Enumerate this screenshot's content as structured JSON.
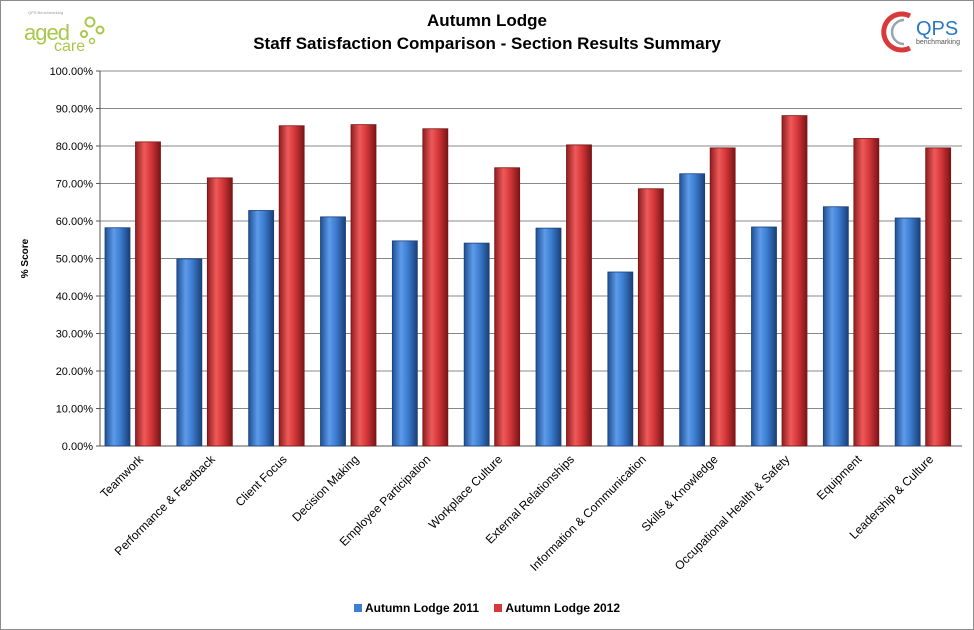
{
  "header": {
    "title_line1": "Autumn Lodge",
    "title_line2": "Staff Satisfaction Comparison - Section Results Summary"
  },
  "logos": {
    "left_small_text": "QPS Benchmarking",
    "left_word1": "aged",
    "left_word2": "care",
    "right_word": "QPS",
    "right_sub": "benchmarking"
  },
  "colors": {
    "series_2011": "#3d7fd3",
    "series_2012": "#d8393b",
    "grid": "#888888"
  },
  "chart_data": {
    "type": "bar",
    "title": "Autumn Lodge Staff Satisfaction Comparison - Section Results Summary",
    "xlabel": "",
    "ylabel": "% Score",
    "ylim": [
      0,
      100
    ],
    "yticks": [
      "0.00%",
      "10.00%",
      "20.00%",
      "30.00%",
      "40.00%",
      "50.00%",
      "60.00%",
      "70.00%",
      "80.00%",
      "90.00%",
      "100.00%"
    ],
    "grid": true,
    "legend_position": "bottom",
    "categories": [
      "Teamwork",
      "Performance & Feedback",
      "Client Focus",
      "Decision Making",
      "Employee Participation",
      "Workplace Culture",
      "External Relationships",
      "Information & Communication",
      "Skills & Knowledge",
      "Occupational Health & Safety",
      "Equipment",
      "Leadership & Culture"
    ],
    "series": [
      {
        "name": "Autumn Lodge 2011",
        "values": [
          58.2,
          49.9,
          62.8,
          61.1,
          54.7,
          54.1,
          58.1,
          46.4,
          72.6,
          58.4,
          63.8,
          60.8
        ]
      },
      {
        "name": "Autumn Lodge 2012",
        "values": [
          81.1,
          71.5,
          85.4,
          85.7,
          84.6,
          74.2,
          80.3,
          68.6,
          79.5,
          88.1,
          82.0,
          79.5
        ]
      }
    ]
  }
}
